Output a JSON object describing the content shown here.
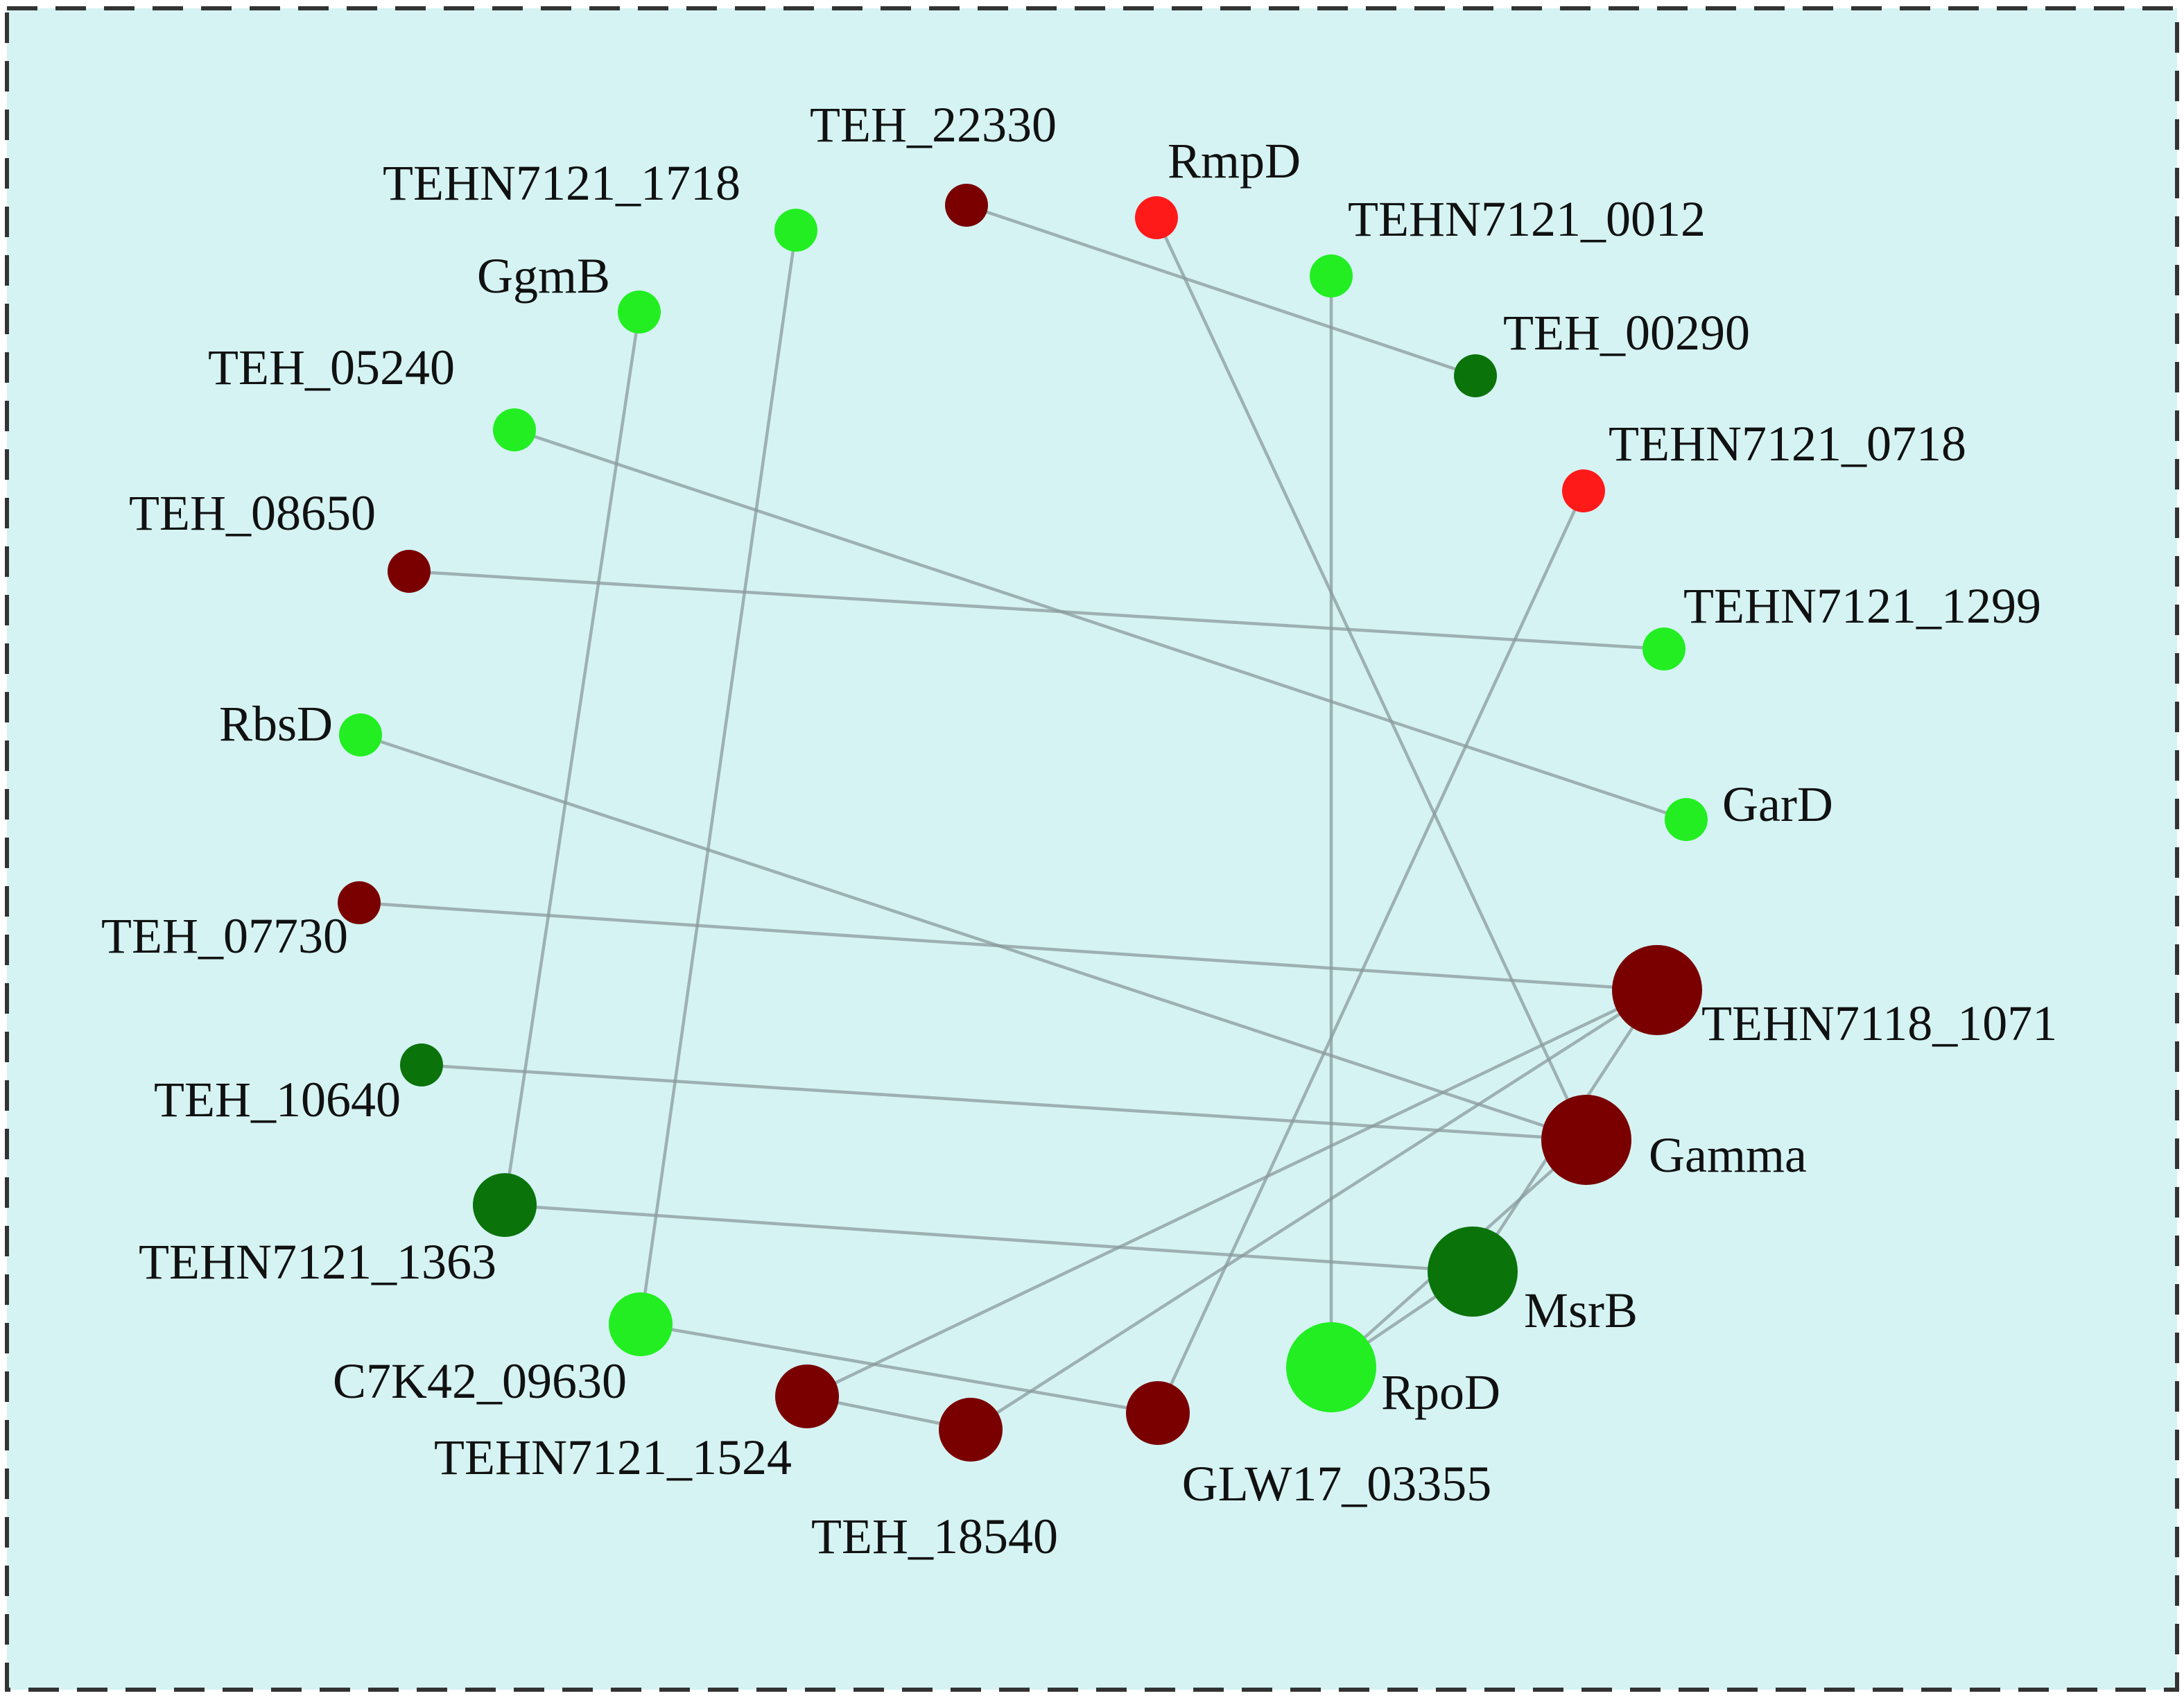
{
  "palette": {
    "panel_background": "#d5f3f3",
    "panel_border": "#333333",
    "edge_color": "#8a9a9c",
    "dark_red": "#7a0000",
    "red": "#ff1a1a",
    "light_green": "#22ee22",
    "dark_green": "#0a730a"
  },
  "nodes": [
    {
      "id": "TEH_22330",
      "label": "TEH_22330",
      "color": "dark_red",
      "size": "small"
    },
    {
      "id": "RmpD",
      "label": "RmpD",
      "color": "red",
      "size": "small"
    },
    {
      "id": "TEHN7121_0012",
      "label": "TEHN7121_0012",
      "color": "light_green",
      "size": "small"
    },
    {
      "id": "TEH_00290",
      "label": "TEH_00290",
      "color": "dark_green",
      "size": "small"
    },
    {
      "id": "TEHN7121_0718",
      "label": "TEHN7121_0718",
      "color": "red",
      "size": "small"
    },
    {
      "id": "TEHN7121_1299",
      "label": "TEHN7121_1299",
      "color": "light_green",
      "size": "small"
    },
    {
      "id": "GarD",
      "label": "GarD",
      "color": "light_green",
      "size": "small"
    },
    {
      "id": "TEHN7118_1071",
      "label": "TEHN7118_1071",
      "color": "dark_red",
      "size": "large"
    },
    {
      "id": "Gamma",
      "label": "Gamma",
      "color": "dark_red",
      "size": "large"
    },
    {
      "id": "MsrB",
      "label": "MsrB",
      "color": "dark_green",
      "size": "large"
    },
    {
      "id": "RpoD",
      "label": "RpoD",
      "color": "light_green",
      "size": "large"
    },
    {
      "id": "GLW17_03355",
      "label": "GLW17_03355",
      "color": "dark_red",
      "size": "medium"
    },
    {
      "id": "TEH_18540",
      "label": "TEH_18540",
      "color": "dark_red",
      "size": "medium"
    },
    {
      "id": "TEHN7121_1524",
      "label": "TEHN7121_1524",
      "color": "dark_red",
      "size": "medium"
    },
    {
      "id": "C7K42_09630",
      "label": "C7K42_09630",
      "color": "light_green",
      "size": "medium"
    },
    {
      "id": "TEHN7121_1363",
      "label": "TEHN7121_1363",
      "color": "dark_green",
      "size": "medium"
    },
    {
      "id": "TEH_10640",
      "label": "TEH_10640",
      "color": "dark_green",
      "size": "small"
    },
    {
      "id": "TEH_07730",
      "label": "TEH_07730",
      "color": "dark_red",
      "size": "small"
    },
    {
      "id": "RbsD",
      "label": "RbsD",
      "color": "light_green",
      "size": "small"
    },
    {
      "id": "TEH_08650",
      "label": "TEH_08650",
      "color": "dark_red",
      "size": "small"
    },
    {
      "id": "TEH_05240",
      "label": "TEH_05240",
      "color": "light_green",
      "size": "small"
    },
    {
      "id": "GgmB",
      "label": "GgmB",
      "color": "light_green",
      "size": "small"
    },
    {
      "id": "TEHN7121_1718",
      "label": "TEHN7121_1718",
      "color": "light_green",
      "size": "small"
    }
  ],
  "edges": [
    [
      "TEH_22330",
      "TEH_00290"
    ],
    [
      "RmpD",
      "Gamma"
    ],
    [
      "TEHN7121_0012",
      "RpoD"
    ],
    [
      "TEHN7121_0718",
      "GLW17_03355"
    ],
    [
      "TEH_08650",
      "TEHN7121_1299"
    ],
    [
      "TEH_05240",
      "GarD"
    ],
    [
      "GgmB",
      "TEHN7121_1363"
    ],
    [
      "TEHN7121_1718",
      "C7K42_09630"
    ],
    [
      "RbsD",
      "Gamma"
    ],
    [
      "TEH_07730",
      "TEHN7118_1071"
    ],
    [
      "TEH_10640",
      "Gamma"
    ],
    [
      "TEHN7121_1363",
      "MsrB"
    ],
    [
      "C7K42_09630",
      "GLW17_03355"
    ],
    [
      "TEHN7121_1524",
      "TEH_18540"
    ],
    [
      "TEHN7121_1524",
      "TEHN7118_1071"
    ],
    [
      "TEH_18540",
      "TEHN7118_1071"
    ],
    [
      "TEHN7118_1071",
      "MsrB"
    ],
    [
      "Gamma",
      "RpoD"
    ],
    [
      "MsrB",
      "RpoD"
    ]
  ]
}
